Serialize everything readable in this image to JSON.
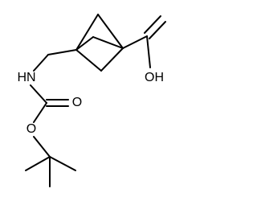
{
  "atoms": {
    "hydroxyl": "OH",
    "amine": "HN",
    "carbonyl_oxygen": "O",
    "ester_oxygen": "O"
  }
}
